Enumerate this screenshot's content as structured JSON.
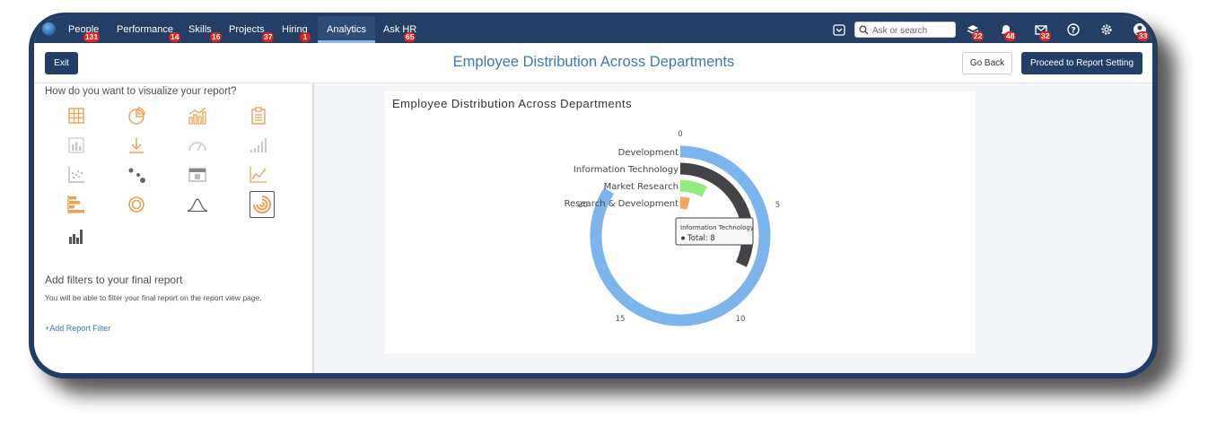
{
  "nav": {
    "items": [
      {
        "label": "People",
        "badge": "131"
      },
      {
        "label": "Performance",
        "badge": "14"
      },
      {
        "label": "Skills",
        "badge": "16"
      },
      {
        "label": "Projects",
        "badge": "37"
      },
      {
        "label": "Hiring",
        "badge": "1"
      },
      {
        "label": "Analytics",
        "badge": ""
      },
      {
        "label": "Ask HR",
        "badge": "65"
      }
    ],
    "search_placeholder": "Ask or search",
    "icon_badges": {
      "inbox": "22",
      "notifications": "48",
      "messages": "32",
      "profile": "33"
    }
  },
  "header": {
    "exit_label": "Exit",
    "title": "Employee Distribution Across Departments",
    "go_back_label": "Go Back",
    "proceed_label": "Proceed to Report Setting"
  },
  "left_panel": {
    "question": "How do you want to visualize your report?",
    "icons": [
      "table-icon",
      "pie-chart-icon",
      "bar-line-chart-icon",
      "clipboard-report-icon",
      "column-chart-icon",
      "download-icon",
      "gauge-icon",
      "step-bars-icon",
      "scatter-plot-icon",
      "bubble-chart-icon",
      "calendar-icon",
      "line-chart-icon",
      "horizontal-bar-chart-icon",
      "donut-chart-icon",
      "bell-curve-icon",
      "radial-bar-chart-icon",
      "mixed-bar-chart-icon"
    ],
    "filters_title": "Add filters to your final report",
    "filters_desc": "You will be able to filter your final report on the report view page.",
    "add_filter_label": "+Add Report Filter"
  },
  "chart_data": {
    "type": "radial-bar",
    "title": "Employee Distribution Across Departments",
    "categories": [
      "Development",
      "Information Technology",
      "Market Research",
      "Research & Development"
    ],
    "values": [
      21,
      8,
      2,
      1
    ],
    "axis_ticks": [
      "0",
      "5",
      "10",
      "15",
      "20"
    ],
    "axis_max": 25,
    "colors": [
      "#7cb5ec",
      "#434348",
      "#90ed7d",
      "#f7a35c"
    ],
    "tooltip": {
      "category": "Information Technology",
      "label": "Total:",
      "value": "8"
    }
  }
}
